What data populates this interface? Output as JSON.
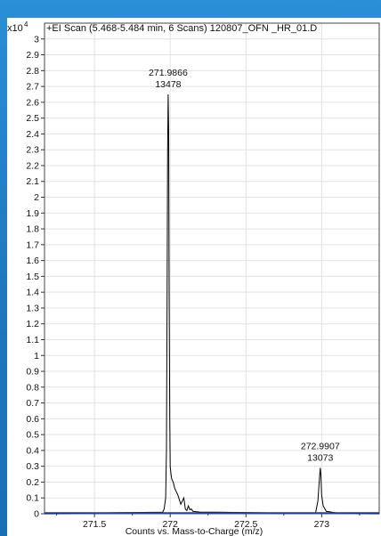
{
  "chart_data": {
    "type": "line",
    "title": "+EI Scan (5.468-5.484 min, 6 Scans) 120807_OFN _HR_01.D",
    "xlabel": "Counts vs. Mass-to-Charge (m/z)",
    "ylabel": "",
    "y_multiplier_label": "x10",
    "y_multiplier_exponent": "4",
    "xlim": [
      271.17,
      273.38
    ],
    "ylim": [
      0,
      3.1
    ],
    "x_ticks": [
      "271.5",
      "272",
      "272.5",
      "273"
    ],
    "x_tick_values": [
      271.5,
      272.0,
      272.5,
      273.0
    ],
    "y_ticks": [
      "0",
      "0.1",
      "0.2",
      "0.3",
      "0.4",
      "0.5",
      "0.6",
      "0.7",
      "0.8",
      "0.9",
      "1",
      "1.1",
      "1.2",
      "1.3",
      "1.4",
      "1.5",
      "1.6",
      "1.7",
      "1.8",
      "1.9",
      "2",
      "2.1",
      "2.2",
      "2.3",
      "2.4",
      "2.5",
      "2.6",
      "2.7",
      "2.8",
      "2.9",
      "3"
    ],
    "grid": true,
    "annotations": [
      {
        "mz": "271.9866",
        "counts": "13478",
        "x": 271.9866,
        "y": 2.65
      },
      {
        "mz": "272.9907",
        "counts": "13073",
        "x": 272.9907,
        "y": 0.29
      }
    ],
    "series": [
      {
        "x": [
          271.17,
          271.5,
          271.95,
          271.96,
          271.97,
          271.975,
          271.98,
          271.983,
          271.9866,
          271.99,
          271.993,
          271.997,
          272.0,
          272.005,
          272.01,
          272.02,
          272.03,
          272.05,
          272.07,
          272.09,
          272.1,
          272.11,
          272.12,
          272.13,
          272.14,
          272.15,
          272.2,
          272.3,
          272.5,
          272.7,
          272.96,
          272.975,
          272.985,
          272.9907,
          272.995,
          273.0,
          273.01,
          273.03,
          273.1,
          273.38
        ],
        "y": [
          0.0,
          0.005,
          0.01,
          0.03,
          0.1,
          0.4,
          1.5,
          2.3,
          2.65,
          2.4,
          1.4,
          0.6,
          0.3,
          0.25,
          0.22,
          0.2,
          0.16,
          0.12,
          0.06,
          0.1,
          0.03,
          0.02,
          0.05,
          0.025,
          0.03,
          0.015,
          0.01,
          0.01,
          0.008,
          0.005,
          0.005,
          0.08,
          0.22,
          0.29,
          0.24,
          0.12,
          0.05,
          0.015,
          0.005,
          0.0
        ]
      }
    ]
  }
}
